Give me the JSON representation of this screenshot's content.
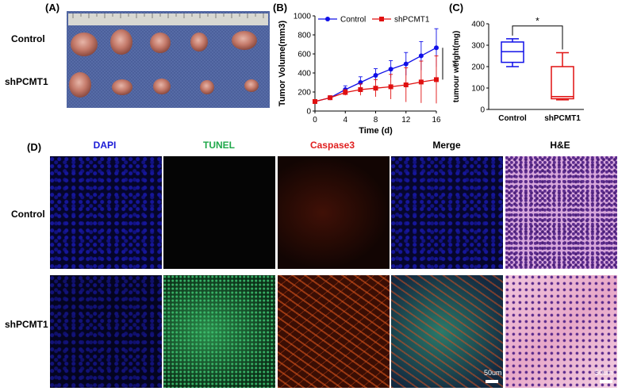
{
  "panels": {
    "A": {
      "label": "(A)",
      "row_labels": [
        "Control",
        "shPCMT1"
      ]
    },
    "B": {
      "label": "(B)"
    },
    "C": {
      "label": "(C)"
    },
    "D": {
      "label": "(D)",
      "columns": [
        "DAPI",
        "TUNEL",
        "Caspase3",
        "Merge",
        "H&E"
      ],
      "column_colors": [
        "#1a1ad6",
        "#1fa84a",
        "#e02020",
        "#000000",
        "#000000"
      ],
      "row_labels": [
        "Control",
        "shPCMT1"
      ],
      "scale_bars": [
        "50um",
        "50um"
      ]
    }
  },
  "chart_data": [
    {
      "type": "line",
      "xlabel": "Time (d)",
      "ylabel": "Tumor Volume(mm3)",
      "ylabel_superscript": "3",
      "x": [
        0,
        2,
        4,
        6,
        8,
        10,
        12,
        14,
        16
      ],
      "xticks": [
        "0",
        "4",
        "8",
        "12",
        "16"
      ],
      "yticks": [
        "0",
        "200",
        "400",
        "600",
        "800",
        "1000"
      ],
      "xlim": [
        0,
        16
      ],
      "ylim": [
        0,
        1000
      ],
      "significance": "**",
      "series": [
        {
          "name": "Control",
          "color": "#1010e8",
          "marker": "circle",
          "values": [
            100,
            140,
            225,
            300,
            375,
            440,
            495,
            580,
            665
          ],
          "errors": [
            10,
            20,
            40,
            60,
            70,
            90,
            120,
            150,
            200
          ]
        },
        {
          "name": "shPCMT1",
          "color": "#e01010",
          "marker": "square",
          "values": [
            100,
            140,
            195,
            225,
            240,
            255,
            275,
            305,
            330
          ],
          "errors": [
            10,
            15,
            30,
            60,
            90,
            130,
            180,
            220,
            250
          ]
        }
      ]
    },
    {
      "type": "box",
      "ylabel": "tumour weight(mg)",
      "categories": [
        "Control",
        "shPCMT1"
      ],
      "yticks": [
        "0",
        "100",
        "200",
        "300",
        "400"
      ],
      "ylim": [
        0,
        400
      ],
      "significance": "*",
      "boxes": [
        {
          "category": "Control",
          "color": "#1010e8",
          "min": 200,
          "q1": 220,
          "median": 270,
          "q3": 315,
          "max": 330
        },
        {
          "category": "shPCMT1",
          "color": "#e01010",
          "min": 45,
          "q1": 50,
          "median": 60,
          "q3": 200,
          "max": 265
        }
      ]
    }
  ]
}
